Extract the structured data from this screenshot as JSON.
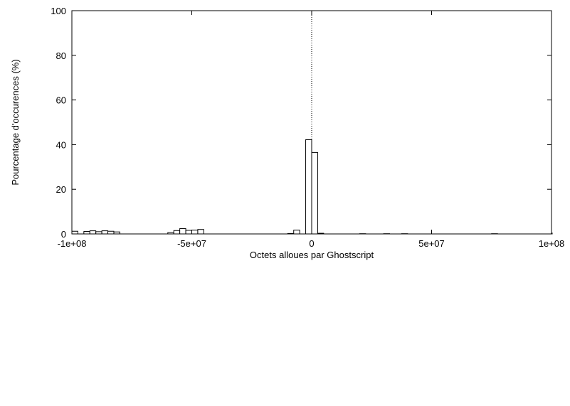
{
  "chart_data": {
    "type": "bar",
    "title": "",
    "xlabel": "Octets alloues par Ghostscript",
    "ylabel": "Pourcentage d'occurences (%)",
    "xlim": [
      -100000000,
      100000000
    ],
    "ylim": [
      0,
      100
    ],
    "x_ticks": [
      -100000000,
      -50000000,
      0,
      50000000,
      100000000
    ],
    "x_tick_labels": [
      "-1e+08",
      "-5e+07",
      "0",
      "5e+07",
      "1e+08"
    ],
    "y_ticks": [
      0,
      20,
      40,
      60,
      80,
      100
    ],
    "y_tick_labels": [
      "0",
      "20",
      "40",
      "60",
      "80",
      "100"
    ],
    "bin_width": 2500000,
    "reference_line_x": 0,
    "grid": false,
    "bars": [
      {
        "x": -100000000,
        "y": 1.2
      },
      {
        "x": -95000000,
        "y": 1.1
      },
      {
        "x": -92500000,
        "y": 1.4
      },
      {
        "x": -90000000,
        "y": 1.0
      },
      {
        "x": -87500000,
        "y": 1.4
      },
      {
        "x": -85000000,
        "y": 1.2
      },
      {
        "x": -82500000,
        "y": 0.9
      },
      {
        "x": -60000000,
        "y": 0.6
      },
      {
        "x": -57500000,
        "y": 1.5
      },
      {
        "x": -55000000,
        "y": 2.4
      },
      {
        "x": -52500000,
        "y": 1.6
      },
      {
        "x": -50000000,
        "y": 1.7
      },
      {
        "x": -47500000,
        "y": 2.0
      },
      {
        "x": -10000000,
        "y": 0.2
      },
      {
        "x": -7500000,
        "y": 1.7
      },
      {
        "x": -2500000,
        "y": 42.2
      },
      {
        "x": 0,
        "y": 36.5
      },
      {
        "x": 2500000,
        "y": 0.3
      },
      {
        "x": 20000000,
        "y": 0.1
      },
      {
        "x": 30000000,
        "y": 0.1
      },
      {
        "x": 37500000,
        "y": 0.1
      },
      {
        "x": 75000000,
        "y": 0.1
      },
      {
        "x": 100000000,
        "y": 0.4
      }
    ]
  }
}
